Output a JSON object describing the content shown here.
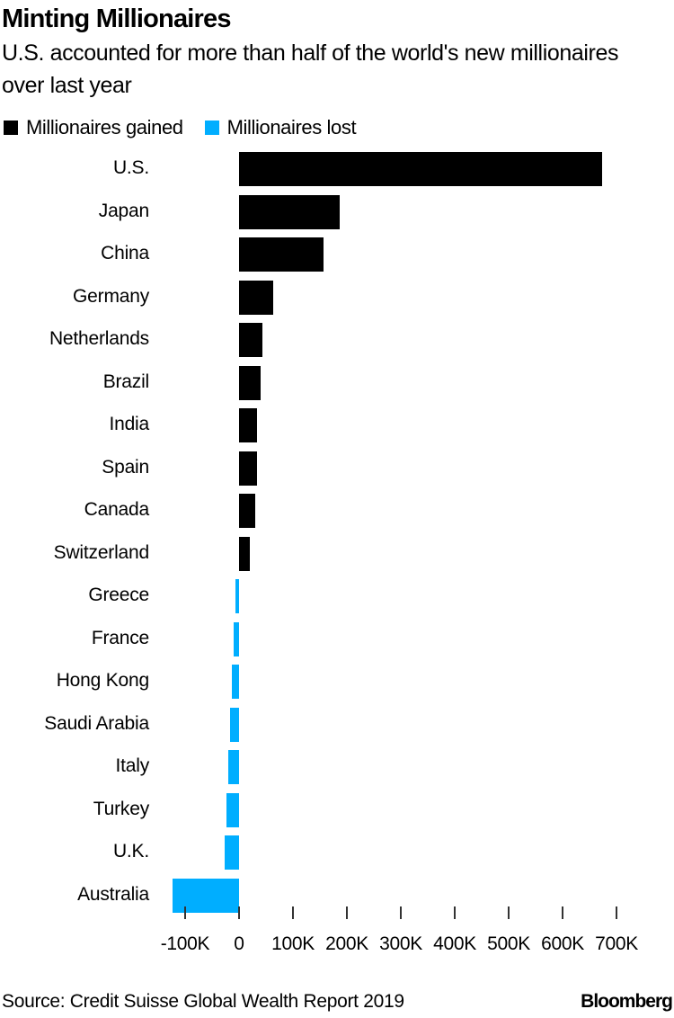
{
  "header": {
    "title": "Minting Millionaires",
    "subtitle": "U.S. accounted for more than half of the world's new millionaires over last year"
  },
  "legend": [
    {
      "label": "Millionaires gained",
      "color": "#000000"
    },
    {
      "label": "Millionaires lost",
      "color": "#00aeff"
    }
  ],
  "footer": {
    "source": "Source: Credit Suisse Global Wealth Report 2019",
    "brand": "Bloomberg"
  },
  "chart_data": {
    "type": "bar",
    "orientation": "horizontal",
    "title": "Minting Millionaires",
    "subtitle": "U.S. accounted for more than half of the world's new millionaires over last year",
    "xlabel": "",
    "ylabel": "",
    "categories": [
      "U.S.",
      "Japan",
      "China",
      "Germany",
      "Netherlands",
      "Brazil",
      "India",
      "Spain",
      "Canada",
      "Switzerland",
      "Greece",
      "France",
      "Hong Kong",
      "Saudi Arabia",
      "Italy",
      "Turkey",
      "U.K.",
      "Australia"
    ],
    "values": [
      673000,
      187000,
      157000,
      63000,
      43000,
      40000,
      34000,
      34000,
      30000,
      20000,
      -7000,
      -10000,
      -13000,
      -17000,
      -20000,
      -23000,
      -27000,
      -123000
    ],
    "series": [
      {
        "name": "Millionaires gained",
        "color": "#000000",
        "categories": [
          "U.S.",
          "Japan",
          "China",
          "Germany",
          "Netherlands",
          "Brazil",
          "India",
          "Spain",
          "Canada",
          "Switzerland"
        ],
        "values": [
          673000,
          187000,
          157000,
          63000,
          43000,
          40000,
          34000,
          34000,
          30000,
          20000
        ]
      },
      {
        "name": "Millionaires lost",
        "color": "#00aeff",
        "categories": [
          "Greece",
          "France",
          "Hong Kong",
          "Saudi Arabia",
          "Italy",
          "Turkey",
          "U.K.",
          "Australia"
        ],
        "values": [
          -7000,
          -10000,
          -13000,
          -17000,
          -20000,
          -23000,
          -27000,
          -123000
        ]
      }
    ],
    "xlim": [
      -100000,
      700000
    ],
    "x_ticks": [
      -100000,
      0,
      100000,
      200000,
      300000,
      400000,
      500000,
      600000,
      700000
    ],
    "x_tick_labels": [
      "-100K",
      "0",
      "100K",
      "200K",
      "300K",
      "400K",
      "500K",
      "600K",
      "700K"
    ],
    "grid": false,
    "legend_position": "top-left"
  }
}
